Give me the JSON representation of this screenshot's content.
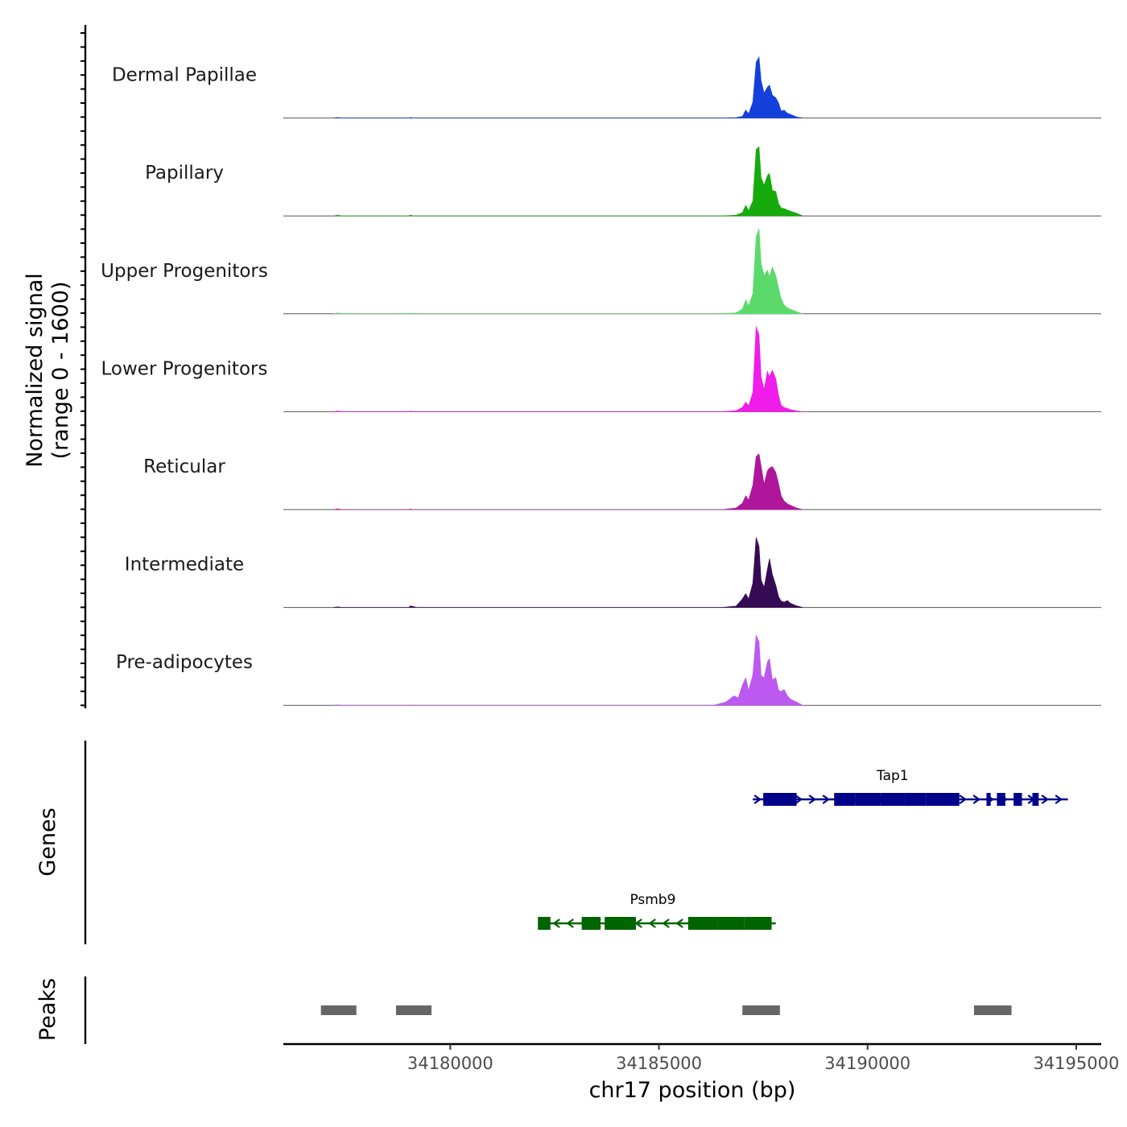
{
  "chart_data": {
    "type": "area",
    "title": "",
    "chromosome": "chr17",
    "xlabel": "chr17 position (bp)",
    "xlim": [
      34176000,
      34195600
    ],
    "x_ticks": [
      34180000,
      34185000,
      34190000,
      34195000
    ],
    "x_tick_labels": [
      "34180000",
      "34185000",
      "34190000",
      "34195000"
    ],
    "ylabel_line1": "Normalized signal",
    "ylabel_line2": "(range 0 - 1600)",
    "ylim": [
      0,
      1600
    ],
    "tracks": [
      {
        "name": "Dermal Papillae",
        "color": "#1340DB",
        "points": [
          [
            34177200,
            0
          ],
          [
            34177300,
            10
          ],
          [
            34177400,
            0
          ],
          [
            34179000,
            0
          ],
          [
            34179050,
            12
          ],
          [
            34179100,
            0
          ],
          [
            34186500,
            0
          ],
          [
            34186850,
            8
          ],
          [
            34187000,
            30
          ],
          [
            34187080,
            150
          ],
          [
            34187150,
            80
          ],
          [
            34187250,
            300
          ],
          [
            34187330,
            1050
          ],
          [
            34187400,
            1150
          ],
          [
            34187450,
            700
          ],
          [
            34187520,
            470
          ],
          [
            34187600,
            580
          ],
          [
            34187650,
            620
          ],
          [
            34187720,
            430
          ],
          [
            34187800,
            380
          ],
          [
            34187870,
            280
          ],
          [
            34187930,
            130
          ],
          [
            34188000,
            150
          ],
          [
            34188080,
            90
          ],
          [
            34188150,
            70
          ],
          [
            34188300,
            20
          ],
          [
            34188450,
            0
          ]
        ]
      },
      {
        "name": "Papillary",
        "color": "#17AA0D",
        "points": [
          [
            34177200,
            0
          ],
          [
            34177300,
            15
          ],
          [
            34177400,
            0
          ],
          [
            34179000,
            0
          ],
          [
            34179050,
            18
          ],
          [
            34179100,
            0
          ],
          [
            34186500,
            0
          ],
          [
            34186850,
            15
          ],
          [
            34187000,
            60
          ],
          [
            34187080,
            200
          ],
          [
            34187150,
            100
          ],
          [
            34187250,
            280
          ],
          [
            34187330,
            1250
          ],
          [
            34187400,
            1300
          ],
          [
            34187450,
            720
          ],
          [
            34187520,
            580
          ],
          [
            34187600,
            760
          ],
          [
            34187650,
            800
          ],
          [
            34187720,
            480
          ],
          [
            34187800,
            460
          ],
          [
            34187870,
            230
          ],
          [
            34187930,
            150
          ],
          [
            34188000,
            140
          ],
          [
            34188080,
            110
          ],
          [
            34188150,
            90
          ],
          [
            34188300,
            50
          ],
          [
            34188450,
            0
          ]
        ]
      },
      {
        "name": "Upper Progenitors",
        "color": "#5BDA6B",
        "points": [
          [
            34177200,
            0
          ],
          [
            34177300,
            18
          ],
          [
            34177400,
            0
          ],
          [
            34179000,
            0
          ],
          [
            34179050,
            15
          ],
          [
            34179100,
            0
          ],
          [
            34186500,
            0
          ],
          [
            34186850,
            20
          ],
          [
            34187000,
            90
          ],
          [
            34187080,
            260
          ],
          [
            34187150,
            150
          ],
          [
            34187250,
            380
          ],
          [
            34187330,
            1450
          ],
          [
            34187400,
            1600
          ],
          [
            34187450,
            960
          ],
          [
            34187520,
            720
          ],
          [
            34187600,
            820
          ],
          [
            34187650,
            700
          ],
          [
            34187720,
            880
          ],
          [
            34187800,
            720
          ],
          [
            34187870,
            480
          ],
          [
            34187930,
            280
          ],
          [
            34188000,
            170
          ],
          [
            34188080,
            110
          ],
          [
            34188150,
            90
          ],
          [
            34188300,
            40
          ],
          [
            34188450,
            0
          ]
        ]
      },
      {
        "name": "Lower Progenitors",
        "color": "#F01CEA",
        "points": [
          [
            34177200,
            0
          ],
          [
            34177300,
            12
          ],
          [
            34177400,
            0
          ],
          [
            34179000,
            0
          ],
          [
            34179050,
            10
          ],
          [
            34179100,
            0
          ],
          [
            34186500,
            0
          ],
          [
            34186850,
            20
          ],
          [
            34187000,
            80
          ],
          [
            34187080,
            180
          ],
          [
            34187150,
            110
          ],
          [
            34187250,
            360
          ],
          [
            34187330,
            1600
          ],
          [
            34187400,
            1450
          ],
          [
            34187450,
            650
          ],
          [
            34187520,
            420
          ],
          [
            34187600,
            760
          ],
          [
            34187650,
            660
          ],
          [
            34187720,
            780
          ],
          [
            34187800,
            620
          ],
          [
            34187870,
            300
          ],
          [
            34187930,
            120
          ],
          [
            34188000,
            80
          ],
          [
            34188080,
            60
          ],
          [
            34188150,
            40
          ],
          [
            34188300,
            15
          ],
          [
            34188450,
            0
          ]
        ]
      },
      {
        "name": "Reticular",
        "color": "#B0169C",
        "points": [
          [
            34177200,
            0
          ],
          [
            34177300,
            15
          ],
          [
            34177400,
            0
          ],
          [
            34179000,
            0
          ],
          [
            34179050,
            10
          ],
          [
            34179100,
            0
          ],
          [
            34186500,
            0
          ],
          [
            34186850,
            30
          ],
          [
            34187000,
            120
          ],
          [
            34187080,
            260
          ],
          [
            34187150,
            180
          ],
          [
            34187250,
            460
          ],
          [
            34187330,
            1000
          ],
          [
            34187400,
            1050
          ],
          [
            34187450,
            820
          ],
          [
            34187520,
            480
          ],
          [
            34187600,
            730
          ],
          [
            34187650,
            780
          ],
          [
            34187720,
            810
          ],
          [
            34187800,
            700
          ],
          [
            34187870,
            480
          ],
          [
            34187930,
            260
          ],
          [
            34188000,
            160
          ],
          [
            34188080,
            110
          ],
          [
            34188150,
            80
          ],
          [
            34188300,
            30
          ],
          [
            34188450,
            0
          ]
        ]
      },
      {
        "name": "Intermediate",
        "color": "#350B55",
        "points": [
          [
            34177200,
            0
          ],
          [
            34177300,
            12
          ],
          [
            34177400,
            0
          ],
          [
            34179000,
            0
          ],
          [
            34179050,
            30
          ],
          [
            34179150,
            10
          ],
          [
            34179200,
            0
          ],
          [
            34186500,
            0
          ],
          [
            34186850,
            25
          ],
          [
            34187000,
            160
          ],
          [
            34187080,
            260
          ],
          [
            34187150,
            160
          ],
          [
            34187250,
            460
          ],
          [
            34187330,
            1320
          ],
          [
            34187400,
            1150
          ],
          [
            34187450,
            520
          ],
          [
            34187520,
            380
          ],
          [
            34187600,
            720
          ],
          [
            34187650,
            920
          ],
          [
            34187720,
            620
          ],
          [
            34187800,
            420
          ],
          [
            34187870,
            200
          ],
          [
            34187930,
            120
          ],
          [
            34188000,
            100
          ],
          [
            34188080,
            130
          ],
          [
            34188150,
            80
          ],
          [
            34188300,
            30
          ],
          [
            34188450,
            0
          ]
        ]
      },
      {
        "name": "Pre-adipocytes",
        "color": "#BB59F0",
        "points": [
          [
            34177200,
            0
          ],
          [
            34177300,
            10
          ],
          [
            34177400,
            0
          ],
          [
            34179000,
            0
          ],
          [
            34179050,
            8
          ],
          [
            34179100,
            0
          ],
          [
            34186300,
            0
          ],
          [
            34186600,
            60
          ],
          [
            34186800,
            180
          ],
          [
            34186900,
            140
          ],
          [
            34187000,
            380
          ],
          [
            34187080,
            520
          ],
          [
            34187150,
            280
          ],
          [
            34187250,
            580
          ],
          [
            34187330,
            1320
          ],
          [
            34187400,
            1200
          ],
          [
            34187450,
            560
          ],
          [
            34187520,
            520
          ],
          [
            34187600,
            820
          ],
          [
            34187650,
            880
          ],
          [
            34187720,
            480
          ],
          [
            34187800,
            520
          ],
          [
            34187870,
            280
          ],
          [
            34187930,
            260
          ],
          [
            34188000,
            300
          ],
          [
            34188080,
            180
          ],
          [
            34188150,
            120
          ],
          [
            34188300,
            60
          ],
          [
            34188450,
            0
          ]
        ]
      }
    ],
    "genes_label": "Genes",
    "genes": [
      {
        "name": "Tap1",
        "strand": "+",
        "color": "#00008B",
        "start": 34187250,
        "end": 34194800,
        "exons": [
          [
            34187500,
            34188300
          ],
          [
            34189200,
            34189700
          ],
          [
            34189700,
            34190300
          ],
          [
            34190300,
            34190900
          ],
          [
            34190900,
            34191400
          ],
          [
            34191400,
            34191800
          ],
          [
            34191800,
            34192200
          ],
          [
            34192850,
            34192950
          ],
          [
            34193100,
            34193300
          ],
          [
            34193500,
            34193700
          ],
          [
            34193950,
            34194100
          ]
        ]
      },
      {
        "name": "Psmb9",
        "strand": "-",
        "color": "#006400",
        "start": 34182100,
        "end": 34187800,
        "exons": [
          [
            34182100,
            34182400
          ],
          [
            34183150,
            34183600
          ],
          [
            34183700,
            34184450
          ],
          [
            34185700,
            34186400
          ],
          [
            34186400,
            34187050
          ],
          [
            34187050,
            34187700
          ]
        ]
      }
    ],
    "peaks_label": "Peaks",
    "peaks": [
      [
        34176900,
        34177750
      ],
      [
        34178700,
        34179550
      ],
      [
        34187000,
        34187900
      ],
      [
        34192550,
        34193450
      ]
    ],
    "peak_color": "#666666"
  }
}
